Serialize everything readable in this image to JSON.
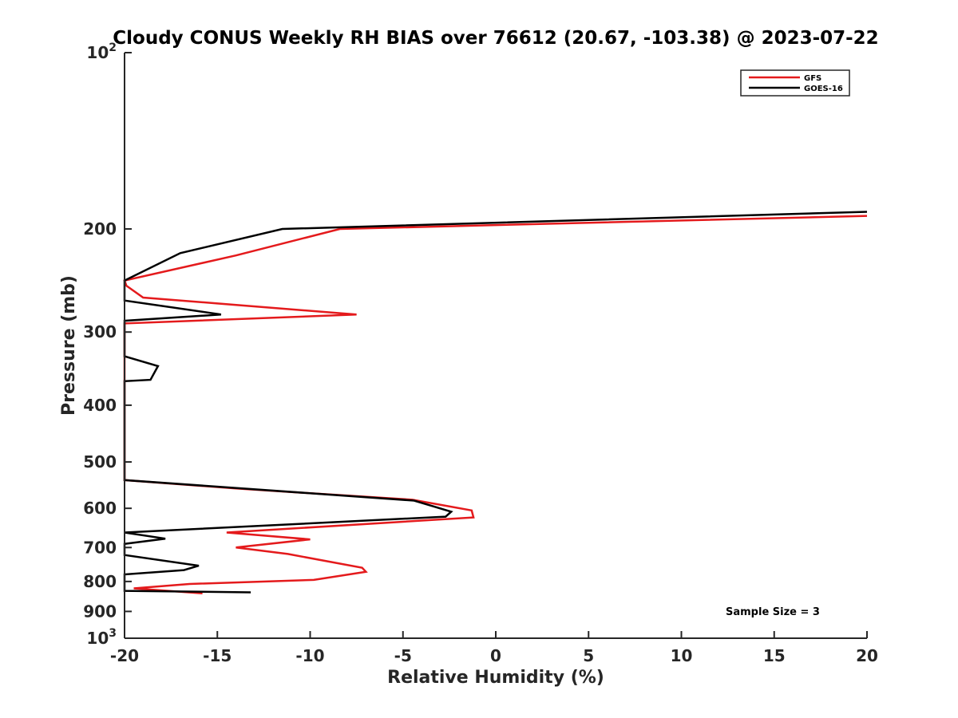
{
  "chart_data": {
    "type": "line",
    "title": "Cloudy CONUS Weekly RH BIAS over 76612 (20.67, -103.38) @ 2023-07-22",
    "xlabel": "Relative Humidity (%)",
    "ylabel": "Pressure (mb)",
    "xlim": [
      -20,
      20
    ],
    "ylim": [
      100,
      1000
    ],
    "yscale": "log",
    "y_reversed": true,
    "xticks": [
      -20,
      -15,
      -10,
      -5,
      0,
      5,
      10,
      15,
      20
    ],
    "xtick_labels": [
      "-20",
      "-15",
      "-10",
      "-5",
      "0",
      "5",
      "10",
      "15",
      "20"
    ],
    "yticks": [
      {
        "value": 100,
        "base": "10",
        "exp": "2"
      },
      {
        "value": 200,
        "label": "200"
      },
      {
        "value": 300,
        "label": "300"
      },
      {
        "value": 400,
        "label": "400"
      },
      {
        "value": 500,
        "label": "500"
      },
      {
        "value": 600,
        "label": "600"
      },
      {
        "value": 700,
        "label": "700"
      },
      {
        "value": 800,
        "label": "800"
      },
      {
        "value": 900,
        "label": "900"
      },
      {
        "value": 1000,
        "base": "10",
        "exp": "3"
      }
    ],
    "legend_position": "top-right",
    "annotation": "Sample Size = 3",
    "series": [
      {
        "name": "GFS",
        "color": "#e41a1c",
        "points": [
          [
            20.0,
            190
          ],
          [
            -8.4,
            200
          ],
          [
            -14.0,
            222
          ],
          [
            -20.0,
            245
          ],
          [
            -19.9,
            250
          ],
          [
            -19.0,
            262
          ],
          [
            -7.5,
            280
          ],
          [
            -20.0,
            290
          ],
          [
            -20.0,
            537
          ],
          [
            -14.0,
            555
          ],
          [
            -4.5,
            580
          ],
          [
            -1.3,
            605
          ],
          [
            -1.2,
            622
          ],
          [
            -14.5,
            660
          ],
          [
            -10.0,
            678
          ],
          [
            -14.0,
            700
          ],
          [
            -11.2,
            718
          ],
          [
            -7.2,
            758
          ],
          [
            -7.0,
            770
          ],
          [
            -9.8,
            795
          ],
          [
            -16.5,
            808
          ],
          [
            -19.5,
            822
          ],
          [
            -15.8,
            838
          ]
        ]
      },
      {
        "name": "GOES-16",
        "color": "#000000",
        "points": [
          [
            20.0,
            187
          ],
          [
            -11.5,
            200
          ],
          [
            -17.0,
            220
          ],
          [
            -20.0,
            245
          ],
          [
            -20.0,
            265
          ],
          [
            -14.8,
            280
          ],
          [
            -20.0,
            287
          ],
          [
            -20.0,
            330
          ],
          [
            -18.2,
            343
          ],
          [
            -18.6,
            362
          ],
          [
            -20.0,
            364
          ],
          [
            -20.0,
            537
          ],
          [
            -4.4,
            582
          ],
          [
            -2.4,
            608
          ],
          [
            -2.7,
            620
          ],
          [
            -20.0,
            660
          ],
          [
            -17.8,
            676
          ],
          [
            -20.0,
            690
          ],
          [
            -20.0,
            721
          ],
          [
            -16.0,
            752
          ],
          [
            -16.8,
            765
          ],
          [
            -20.0,
            778
          ],
          [
            -20.0,
            830
          ],
          [
            -13.2,
            835
          ]
        ]
      }
    ]
  }
}
